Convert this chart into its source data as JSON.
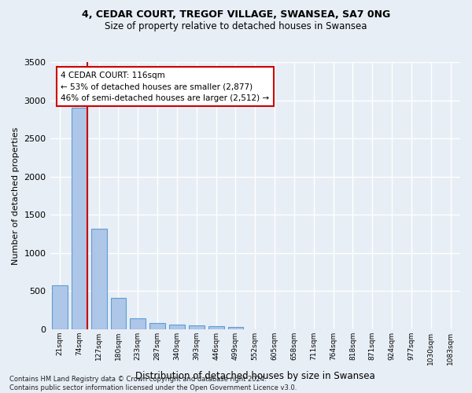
{
  "title_line1": "4, CEDAR COURT, TREGOF VILLAGE, SWANSEA, SA7 0NG",
  "title_line2": "Size of property relative to detached houses in Swansea",
  "xlabel": "Distribution of detached houses by size in Swansea",
  "ylabel": "Number of detached properties",
  "footnote": "Contains HM Land Registry data © Crown copyright and database right 2024.\nContains public sector information licensed under the Open Government Licence v3.0.",
  "bin_labels": [
    "21sqm",
    "74sqm",
    "127sqm",
    "180sqm",
    "233sqm",
    "287sqm",
    "340sqm",
    "393sqm",
    "446sqm",
    "499sqm",
    "552sqm",
    "605sqm",
    "658sqm",
    "711sqm",
    "764sqm",
    "818sqm",
    "871sqm",
    "924sqm",
    "977sqm",
    "1030sqm",
    "1083sqm"
  ],
  "bar_values": [
    575,
    2900,
    1320,
    410,
    145,
    80,
    55,
    50,
    40,
    30,
    0,
    0,
    0,
    0,
    0,
    0,
    0,
    0,
    0,
    0,
    0
  ],
  "bar_color": "#aec6e8",
  "bar_edge_color": "#5a9fd4",
  "background_color": "#e8eef6",
  "grid_color": "#ffffff",
  "property_line_color": "#cc0000",
  "annotation_text": "4 CEDAR COURT: 116sqm\n← 53% of detached houses are smaller (2,877)\n46% of semi-detached houses are larger (2,512) →",
  "annotation_box_color": "#ffffff",
  "annotation_box_edge": "#cc0000",
  "ylim": [
    0,
    3500
  ],
  "yticks": [
    0,
    500,
    1000,
    1500,
    2000,
    2500,
    3000,
    3500
  ]
}
